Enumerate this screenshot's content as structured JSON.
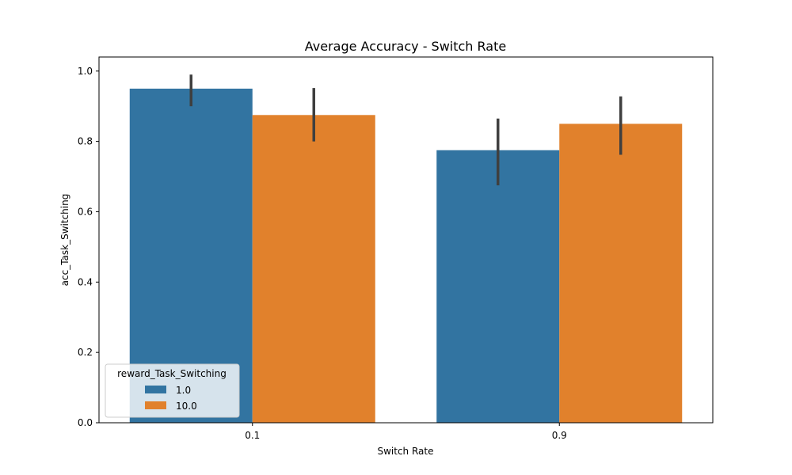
{
  "chart_data": {
    "type": "bar",
    "title": "Average Accuracy - Switch Rate",
    "xlabel": "Switch Rate",
    "ylabel": "acc_Task_Switching",
    "categories": [
      "0.1",
      "0.9"
    ],
    "ylim": [
      0,
      1.04
    ],
    "yticks": [
      "0.0",
      "0.2",
      "0.4",
      "0.6",
      "0.8",
      "1.0"
    ],
    "grid": false,
    "legend": {
      "title": "reward_Task_Switching",
      "placement": "lower-left"
    },
    "series": [
      {
        "name": "1.0",
        "color": "#3274a1",
        "values": [
          0.95,
          0.775
        ],
        "error_low": [
          0.9,
          0.675
        ],
        "error_high": [
          0.99,
          0.865
        ]
      },
      {
        "name": "10.0",
        "color": "#e1812c",
        "values": [
          0.875,
          0.85
        ],
        "error_low": [
          0.8,
          0.762
        ],
        "error_high": [
          0.952,
          0.928
        ]
      }
    ],
    "error_color": "#3f3f3f"
  }
}
